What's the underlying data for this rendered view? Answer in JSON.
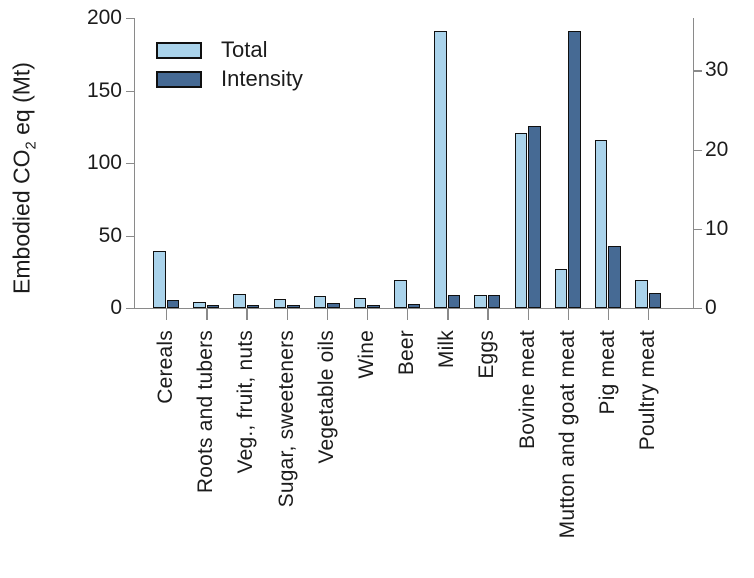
{
  "chart_data": {
    "type": "bar",
    "title": "",
    "categories": [
      "Cereals",
      "Roots and tubers",
      "Veg., fruit, nuts",
      "Sugar, sweeteners",
      "Vegetable oils",
      "Wine",
      "Beer",
      "Milk",
      "Eggs",
      "Bovine meat",
      "Mutton and goat meat",
      "Pig meat",
      "Poultry meat"
    ],
    "series": [
      {
        "name": "Total",
        "axis": "left",
        "color": "#aad3eb",
        "values": [
          39,
          4,
          10,
          6,
          8,
          7,
          19,
          191,
          9,
          121,
          27,
          116,
          19
        ]
      },
      {
        "name": "Intensity",
        "axis": "right",
        "color": "#466a94",
        "values": [
          1.0,
          0.2,
          0.3,
          0.2,
          0.6,
          0.4,
          0.5,
          1.7,
          1.7,
          23,
          35,
          7.8,
          1.9
        ]
      }
    ],
    "left_axis": {
      "label_pre": "Embodied CO",
      "label_sub": "2",
      "label_post": " eq (Mt)",
      "ticks": [
        0,
        50,
        100,
        150,
        200
      ],
      "range": [
        0,
        200
      ]
    },
    "right_axis": {
      "label": "",
      "ticks": [
        0,
        10,
        20,
        30
      ],
      "range": [
        0,
        36.6
      ]
    },
    "legend": {
      "position": "upper-left",
      "entries": [
        "Total",
        "Intensity"
      ]
    },
    "grid": false
  },
  "colors": {
    "bar_total": "#aad3eb",
    "bar_intensity": "#466a94",
    "bar_edge": "#101010",
    "axis": "#8a8a8a",
    "text": "#1c1c1c",
    "background": "#ffffff"
  }
}
